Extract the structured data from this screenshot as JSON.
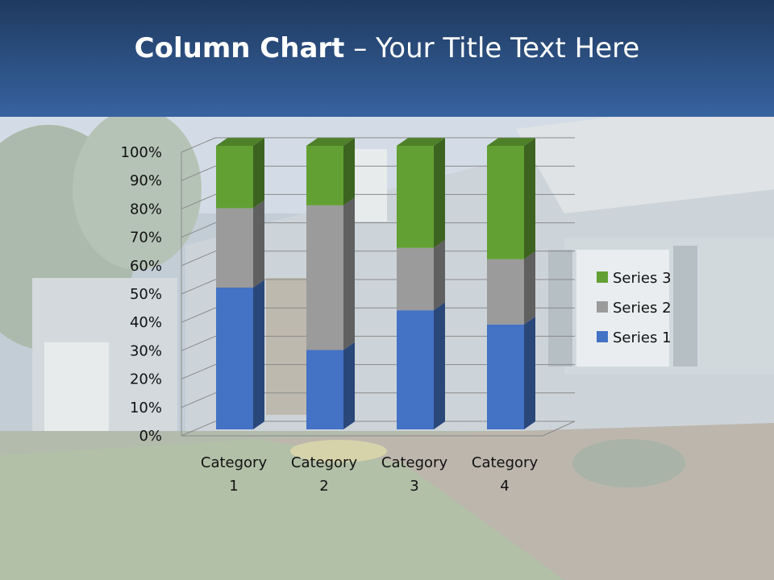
{
  "slide": {
    "title_bold": "Column Chart",
    "title_rest": " – Your Title Text Here"
  },
  "colors": {
    "series1": "#4472c4",
    "series2": "#9b9b9b",
    "series3": "#62a033",
    "header_top": "#1f3a5f",
    "header_bottom": "#3763a0"
  },
  "chart_data": {
    "type": "bar",
    "stacked": "percent",
    "three_d": true,
    "categories": [
      "Category 1",
      "Category 2",
      "Category 3",
      "Category 4"
    ],
    "series": [
      {
        "name": "Series 1",
        "values": [
          50,
          28,
          42,
          37
        ]
      },
      {
        "name": "Series 2",
        "values": [
          28,
          51,
          22,
          23
        ]
      },
      {
        "name": "Series 3",
        "values": [
          22,
          21,
          36,
          40
        ]
      }
    ],
    "yticks": [
      "0%",
      "10%",
      "20%",
      "30%",
      "40%",
      "50%",
      "60%",
      "70%",
      "80%",
      "90%",
      "100%"
    ],
    "ylim": [
      0,
      100
    ],
    "grid": true,
    "legend": "right"
  }
}
